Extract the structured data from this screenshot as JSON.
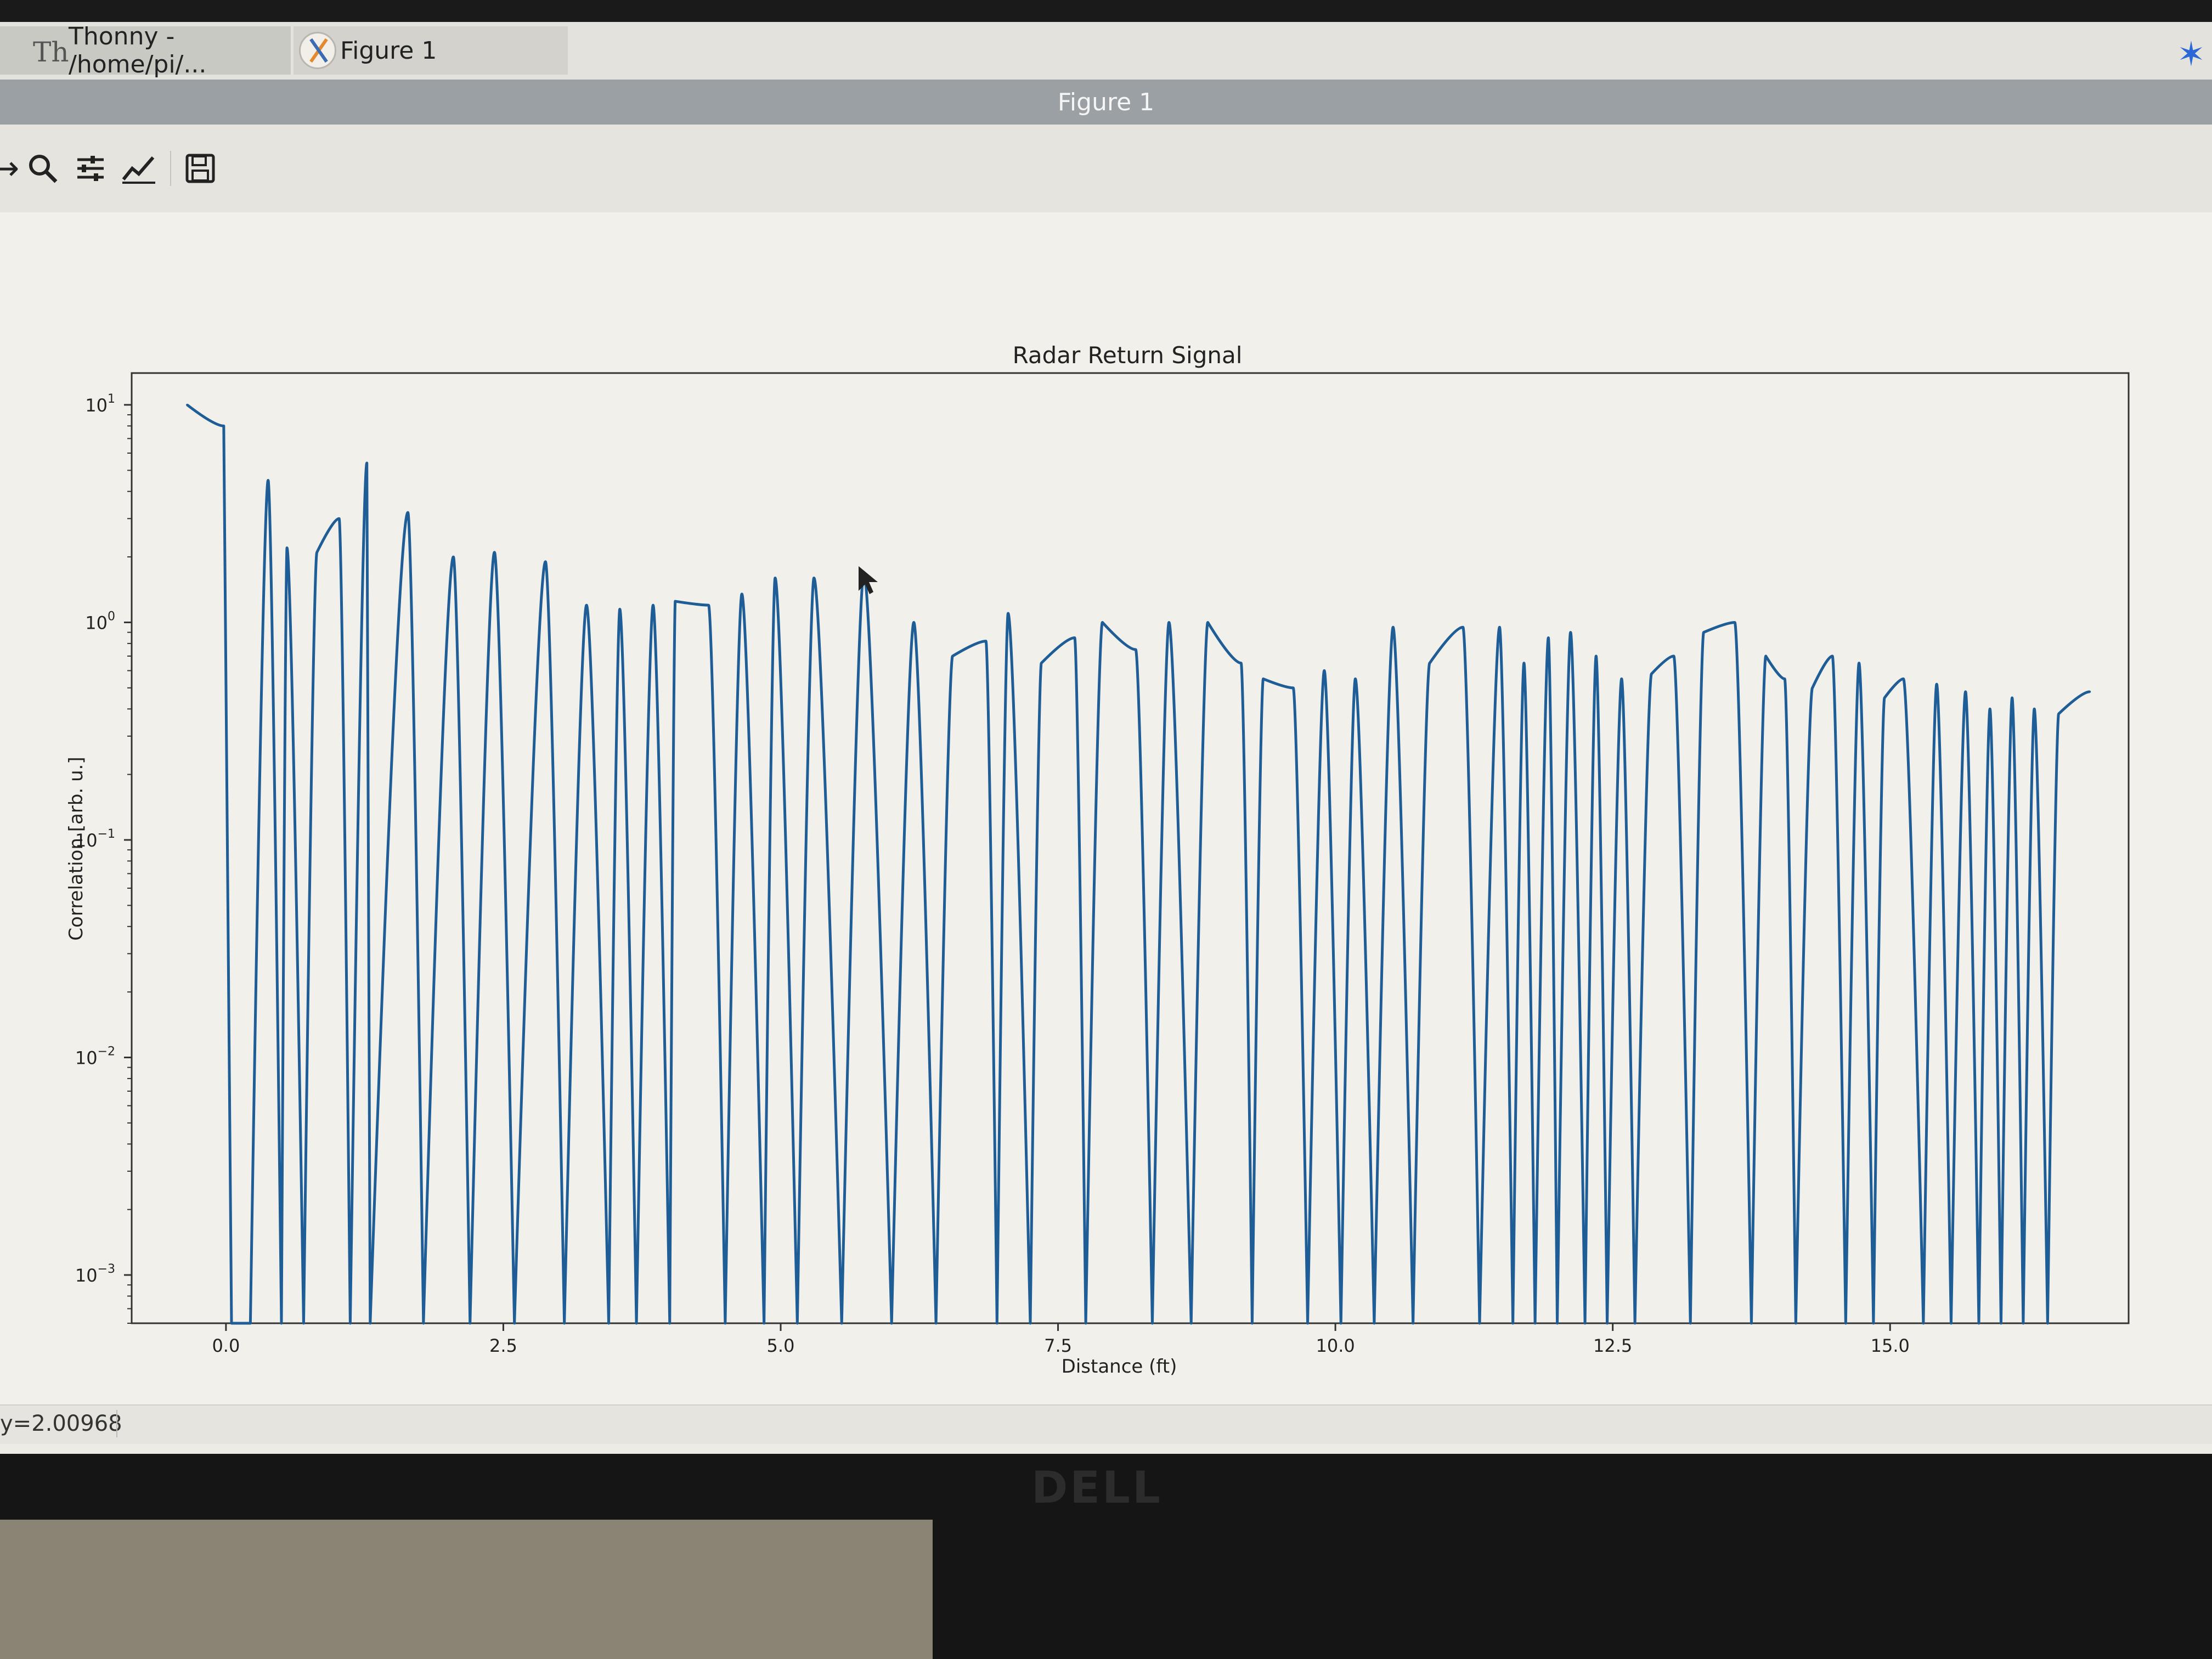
{
  "taskbar": {
    "thonny_label": "Thonny  -  /home/pi/...",
    "thonny_icon": "Th",
    "figure_label": "Figure 1",
    "bluetooth_icon": "bluetooth-icon"
  },
  "window": {
    "title": "Figure 1"
  },
  "toolbar": {
    "icons": [
      "forward-arrow-icon",
      "zoom-icon",
      "configure-subplots-icon",
      "edit-axis-icon",
      "save-icon"
    ]
  },
  "status": {
    "text": "y=2.00968"
  },
  "monitor": {
    "brand": "DELL"
  },
  "colors": {
    "line": "#1f5d96",
    "background": "#f1f0eb"
  },
  "chart_data": {
    "type": "line",
    "title": "Radar Return Signal",
    "xlabel": "Distance (ft)",
    "ylabel": "Correlation [arb. u.]",
    "yscale": "log",
    "xlim": [
      -0.85,
      17.15
    ],
    "ylim": [
      0.0006,
      14
    ],
    "xticks": [
      0.0,
      2.5,
      5.0,
      7.5,
      10.0,
      12.5,
      15.0
    ],
    "xtick_labels": [
      "0.0",
      "2.5",
      "5.0",
      "7.5",
      "10.0",
      "12.5",
      "15.0"
    ],
    "yticks": [
      10,
      1,
      0.1,
      0.01,
      0.001
    ],
    "ytick_labels": [
      {
        "base": "10",
        "exp": "1"
      },
      {
        "base": "10",
        "exp": "0"
      },
      {
        "base": "10",
        "exp": "−1"
      },
      {
        "base": "10",
        "exp": "−2"
      },
      {
        "base": "10",
        "exp": "−3"
      }
    ],
    "grid": false,
    "legend": "none",
    "peaks_x": [
      -0.35,
      -0.02,
      0.38,
      0.55,
      0.82,
      1.02,
      1.27,
      1.64,
      2.05,
      2.42,
      2.88,
      3.25,
      3.55,
      3.85,
      4.05,
      4.35,
      4.65,
      4.95,
      5.3,
      5.75,
      6.2,
      6.55,
      6.85,
      7.05,
      7.35,
      7.65,
      7.9,
      8.2,
      8.5,
      8.85,
      9.15,
      9.35,
      9.62,
      9.9,
      10.18,
      10.52,
      10.85,
      11.15,
      11.48,
      11.7,
      11.92,
      12.12,
      12.35,
      12.58,
      12.85,
      13.05,
      13.32,
      13.6,
      13.88,
      14.05,
      14.3,
      14.48,
      14.72,
      14.95,
      15.12,
      15.42,
      15.68,
      15.9,
      16.1,
      16.3,
      16.52,
      16.8
    ],
    "peaks_y": [
      10.0,
      8.0,
      4.5,
      2.2,
      2.1,
      3.0,
      5.4,
      3.2,
      2.0,
      2.1,
      1.9,
      1.2,
      1.15,
      1.2,
      1.25,
      1.2,
      1.35,
      1.6,
      1.6,
      1.7,
      1.0,
      0.7,
      0.82,
      1.1,
      0.65,
      0.85,
      1.0,
      0.75,
      1.0,
      1.0,
      0.65,
      0.55,
      0.5,
      0.6,
      0.55,
      0.95,
      0.65,
      0.95,
      0.95,
      0.65,
      0.85,
      0.9,
      0.7,
      0.55,
      0.58,
      0.7,
      0.9,
      1.0,
      0.7,
      0.55,
      0.5,
      0.7,
      0.65,
      0.45,
      0.55,
      0.52,
      0.48,
      0.4,
      0.45,
      0.4,
      0.38,
      0.48
    ],
    "nulls_x": [
      0.05,
      0.22,
      0.5,
      0.7,
      1.12,
      1.3,
      1.78,
      2.2,
      2.6,
      3.05,
      3.45,
      3.7,
      4.0,
      4.5,
      4.85,
      5.15,
      5.55,
      6.0,
      6.4,
      6.95,
      7.25,
      7.75,
      8.35,
      8.7,
      9.25,
      9.75,
      10.05,
      10.35,
      10.7,
      11.3,
      11.6,
      11.8,
      12.0,
      12.25,
      12.45,
      12.7,
      13.2,
      13.75,
      14.15,
      14.6,
      14.85,
      15.3,
      15.55,
      15.8,
      16.0,
      16.2,
      16.42
    ],
    "nulls_y": [
      0.0006,
      0.0006,
      0.0006,
      0.0006,
      0.0006,
      0.0006,
      0.0006,
      0.0006,
      0.0006,
      0.0006,
      0.0006,
      0.0006,
      0.0006,
      0.0006,
      0.0006,
      0.0006,
      0.0006,
      0.0006,
      0.0006,
      0.0006,
      0.0006,
      0.0006,
      0.0006,
      0.0006,
      0.0006,
      0.0006,
      0.0006,
      0.0006,
      0.0006,
      0.0006,
      0.0006,
      0.0006,
      0.0006,
      0.0006,
      0.0006,
      0.0006,
      0.0006,
      0.0006,
      0.0006,
      0.0006,
      0.0006,
      0.0006,
      0.0006,
      0.0006,
      0.0006,
      0.0006,
      0.0006
    ]
  }
}
